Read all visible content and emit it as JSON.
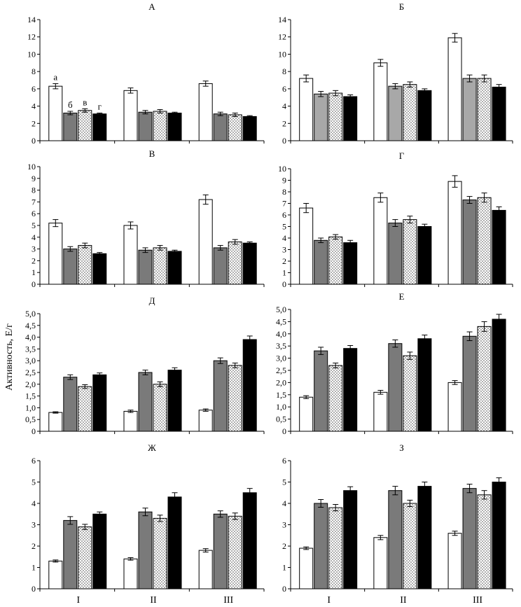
{
  "figure": {
    "ylabel": "Активность, Е/г",
    "group_labels": [
      "I",
      "II",
      "III"
    ]
  },
  "bar_styles": {
    "a": {
      "fill": "#ffffff",
      "pattern": "none"
    },
    "b": {
      "fill": "#7a7a7a",
      "pattern": "none"
    },
    "b_light": {
      "fill": "#a8a8a8",
      "pattern": "none"
    },
    "c": {
      "fill": "#ffffff",
      "pattern": "dots"
    },
    "d": {
      "fill": "#000000",
      "pattern": "none"
    }
  },
  "chart_data": [
    {
      "type": "bar",
      "title": "А",
      "ylim": [
        0,
        14
      ],
      "yticks": [
        0,
        2,
        4,
        6,
        8,
        10,
        12,
        14
      ],
      "categories": [
        "I",
        "II",
        "III"
      ],
      "bar_labels": [
        "а",
        "б",
        "в",
        "г"
      ],
      "series": [
        {
          "name": "а",
          "values": [
            6.3,
            5.8,
            6.6
          ],
          "errors": [
            0.3,
            0.3,
            0.3
          ]
        },
        {
          "name": "б",
          "values": [
            3.2,
            3.3,
            3.1
          ],
          "errors": [
            0.2,
            0.2,
            0.2
          ]
        },
        {
          "name": "в",
          "values": [
            3.5,
            3.4,
            3.0
          ],
          "errors": [
            0.2,
            0.2,
            0.2
          ]
        },
        {
          "name": "г",
          "values": [
            3.1,
            3.2,
            2.8
          ],
          "errors": [
            0.1,
            0.1,
            0.1
          ]
        }
      ]
    },
    {
      "type": "bar",
      "title": "Б",
      "ylim": [
        0,
        14
      ],
      "yticks": [
        0,
        2,
        4,
        6,
        8,
        10,
        12,
        14
      ],
      "categories": [
        "I",
        "II",
        "III"
      ],
      "series": [
        {
          "name": "а",
          "values": [
            7.2,
            9.0,
            11.9
          ],
          "errors": [
            0.4,
            0.4,
            0.5
          ]
        },
        {
          "name": "б",
          "values": [
            5.4,
            6.3,
            7.2
          ],
          "errors": [
            0.3,
            0.3,
            0.4
          ]
        },
        {
          "name": "в",
          "values": [
            5.5,
            6.5,
            7.2
          ],
          "errors": [
            0.3,
            0.3,
            0.4
          ]
        },
        {
          "name": "г",
          "values": [
            5.1,
            5.8,
            6.2
          ],
          "errors": [
            0.2,
            0.2,
            0.3
          ]
        }
      ]
    },
    {
      "type": "bar",
      "title": "В",
      "ylim": [
        0,
        10
      ],
      "yticks": [
        0,
        1,
        2,
        3,
        4,
        5,
        6,
        7,
        8,
        9,
        10
      ],
      "categories": [
        "I",
        "II",
        "III"
      ],
      "series": [
        {
          "name": "а",
          "values": [
            5.2,
            5.0,
            7.2
          ],
          "errors": [
            0.3,
            0.3,
            0.4
          ]
        },
        {
          "name": "б",
          "values": [
            3.0,
            2.9,
            3.1
          ],
          "errors": [
            0.2,
            0.2,
            0.2
          ]
        },
        {
          "name": "в",
          "values": [
            3.3,
            3.1,
            3.6
          ],
          "errors": [
            0.2,
            0.2,
            0.2
          ]
        },
        {
          "name": "г",
          "values": [
            2.6,
            2.8,
            3.5
          ],
          "errors": [
            0.1,
            0.1,
            0.1
          ]
        }
      ]
    },
    {
      "type": "bar",
      "title": "Г",
      "ylim": [
        0,
        10
      ],
      "yticks": [
        0,
        1,
        2,
        3,
        4,
        5,
        6,
        7,
        8,
        9,
        10
      ],
      "categories": [
        "I",
        "II",
        "III"
      ],
      "series": [
        {
          "name": "а",
          "values": [
            6.6,
            7.5,
            8.9
          ],
          "errors": [
            0.4,
            0.4,
            0.5
          ]
        },
        {
          "name": "б",
          "values": [
            3.8,
            5.3,
            7.3
          ],
          "errors": [
            0.2,
            0.3,
            0.3
          ]
        },
        {
          "name": "в",
          "values": [
            4.1,
            5.6,
            7.5
          ],
          "errors": [
            0.2,
            0.3,
            0.4
          ]
        },
        {
          "name": "г",
          "values": [
            3.6,
            5.0,
            6.4
          ],
          "errors": [
            0.2,
            0.2,
            0.3
          ]
        }
      ]
    },
    {
      "type": "bar",
      "title": "Д",
      "ylim": [
        0,
        5
      ],
      "yticks": [
        "0",
        "0,5",
        "1,0",
        "1,5",
        "2,0",
        "2,5",
        "3,0",
        "3,5",
        "4,0",
        "4,5",
        "5,0"
      ],
      "categories": [
        "I",
        "II",
        "III"
      ],
      "series": [
        {
          "name": "а",
          "values": [
            0.8,
            0.85,
            0.9
          ],
          "errors": [
            0.03,
            0.05,
            0.05
          ]
        },
        {
          "name": "б",
          "values": [
            2.3,
            2.5,
            3.0
          ],
          "errors": [
            0.1,
            0.1,
            0.12
          ]
        },
        {
          "name": "в",
          "values": [
            1.9,
            2.0,
            2.8
          ],
          "errors": [
            0.08,
            0.1,
            0.1
          ]
        },
        {
          "name": "г",
          "values": [
            2.4,
            2.6,
            3.9
          ],
          "errors": [
            0.08,
            0.1,
            0.15
          ]
        }
      ]
    },
    {
      "type": "bar",
      "title": "Е",
      "ylim": [
        0,
        5
      ],
      "yticks": [
        "0",
        "0,5",
        "1,0",
        "1,5",
        "2,0",
        "2,5",
        "3,0",
        "3,5",
        "4,0",
        "4,5",
        "5,0"
      ],
      "categories": [
        "I",
        "II",
        "III"
      ],
      "series": [
        {
          "name": "а",
          "values": [
            1.4,
            1.6,
            2.0
          ],
          "errors": [
            0.06,
            0.08,
            0.08
          ]
        },
        {
          "name": "б",
          "values": [
            3.3,
            3.6,
            3.9
          ],
          "errors": [
            0.15,
            0.15,
            0.18
          ]
        },
        {
          "name": "в",
          "values": [
            2.7,
            3.1,
            4.3
          ],
          "errors": [
            0.1,
            0.15,
            0.2
          ]
        },
        {
          "name": "г",
          "values": [
            3.4,
            3.8,
            4.6
          ],
          "errors": [
            0.12,
            0.15,
            0.2
          ]
        }
      ]
    },
    {
      "type": "bar",
      "title": "Ж",
      "ylim": [
        0,
        6
      ],
      "yticks": [
        0,
        1,
        2,
        3,
        4,
        5,
        6
      ],
      "categories": [
        "I",
        "II",
        "III"
      ],
      "series": [
        {
          "name": "а",
          "values": [
            1.3,
            1.4,
            1.8
          ],
          "errors": [
            0.05,
            0.06,
            0.08
          ]
        },
        {
          "name": "б",
          "values": [
            3.2,
            3.6,
            3.5
          ],
          "errors": [
            0.18,
            0.18,
            0.15
          ]
        },
        {
          "name": "в",
          "values": [
            2.9,
            3.3,
            3.4
          ],
          "errors": [
            0.12,
            0.15,
            0.15
          ]
        },
        {
          "name": "г",
          "values": [
            3.5,
            4.3,
            4.5
          ],
          "errors": [
            0.1,
            0.2,
            0.2
          ]
        }
      ]
    },
    {
      "type": "bar",
      "title": "З",
      "ylim": [
        0,
        6
      ],
      "yticks": [
        0,
        1,
        2,
        3,
        4,
        5,
        6
      ],
      "categories": [
        "I",
        "II",
        "III"
      ],
      "series": [
        {
          "name": "а",
          "values": [
            1.9,
            2.4,
            2.6
          ],
          "errors": [
            0.06,
            0.1,
            0.1
          ]
        },
        {
          "name": "б",
          "values": [
            4.0,
            4.6,
            4.7
          ],
          "errors": [
            0.18,
            0.2,
            0.2
          ]
        },
        {
          "name": "в",
          "values": [
            3.8,
            4.0,
            4.4
          ],
          "errors": [
            0.15,
            0.15,
            0.2
          ]
        },
        {
          "name": "г",
          "values": [
            4.6,
            4.8,
            5.0
          ],
          "errors": [
            0.18,
            0.2,
            0.2
          ]
        }
      ]
    }
  ]
}
